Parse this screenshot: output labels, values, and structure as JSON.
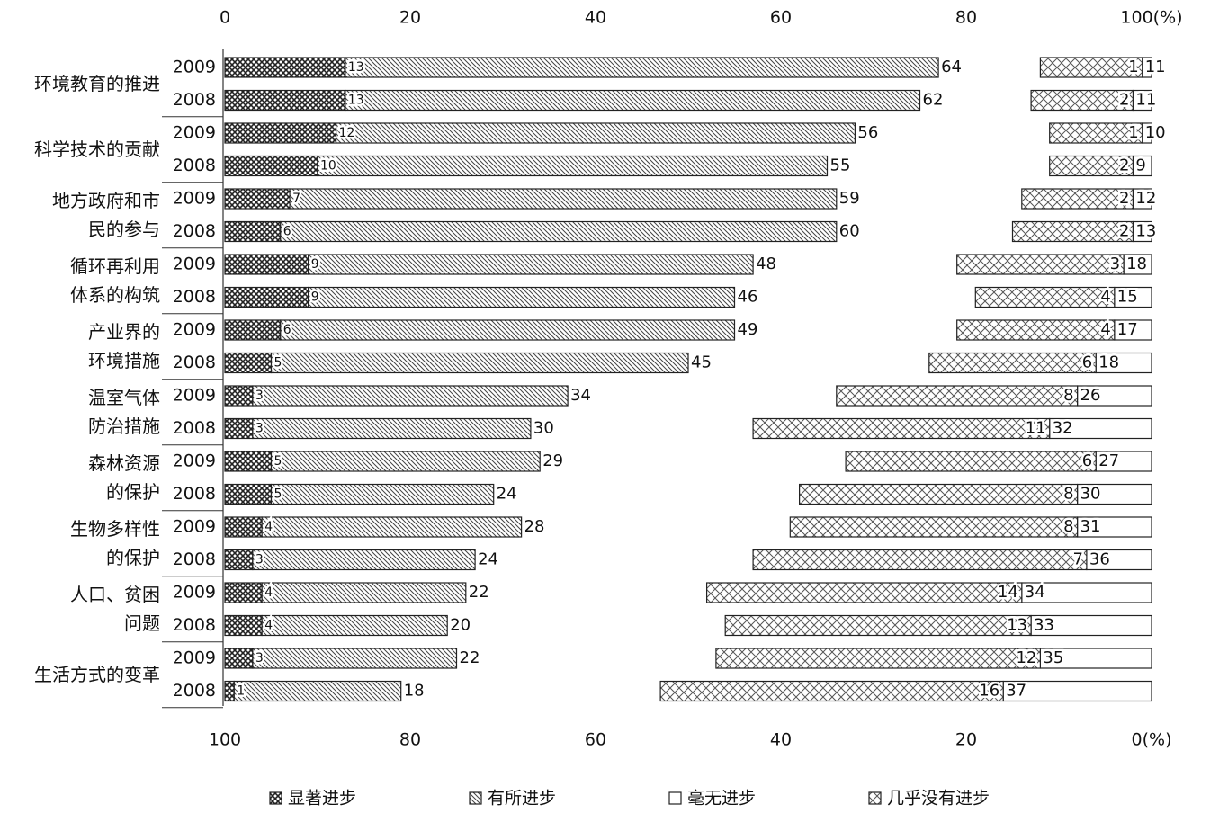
{
  "chart_data": {
    "type": "bar",
    "groups": [
      "环境教育的推进",
      "科学技术的贡献",
      "地方政府和市\n民的参与",
      "循环再利用\n体系的构筑",
      "产业界的\n环境措施",
      "温室气体\n防治措施",
      "森林资源\n的保护",
      "生物多样性\n的保护",
      "人口、贫困\n问题",
      "生活方式的变革"
    ],
    "categories": [
      "2009",
      "2008",
      "2009",
      "2008",
      "2009",
      "2008",
      "2009",
      "2008",
      "2009",
      "2008",
      "2009",
      "2008",
      "2009",
      "2008",
      "2009",
      "2008",
      "2009",
      "2008",
      "2009",
      "2008"
    ],
    "series": [
      {
        "name": "显著进步",
        "color": "#222222",
        "values": [
          13,
          13,
          12,
          10,
          7,
          6,
          9,
          9,
          6,
          5,
          3,
          3,
          5,
          5,
          4,
          3,
          4,
          4,
          3,
          1
        ]
      },
      {
        "name": "有所进步",
        "color": "#444444",
        "values": [
          64,
          62,
          56,
          55,
          59,
          60,
          48,
          46,
          49,
          45,
          34,
          30,
          29,
          24,
          28,
          24,
          22,
          20,
          22,
          18
        ]
      },
      {
        "name": "毫无进步",
        "color": "#ffffff",
        "values": [
          1,
          2,
          1,
          2,
          2,
          2,
          3,
          4,
          4,
          6,
          8,
          11,
          6,
          8,
          8,
          7,
          14,
          13,
          12,
          16
        ]
      },
      {
        "name": "几乎没有进步",
        "color": "#555555",
        "values": [
          11,
          11,
          10,
          9,
          12,
          13,
          18,
          15,
          17,
          18,
          26,
          32,
          27,
          30,
          31,
          36,
          34,
          33,
          35,
          37
        ]
      }
    ],
    "xlim": [
      0,
      100
    ],
    "xticks": [
      0,
      20,
      40,
      60,
      80,
      {
        "value": 100,
        "label": "100(%)"
      }
    ],
    "x2ticks": [
      {
        "value": 0,
        "label": "100"
      },
      {
        "value": 20,
        "label": "80"
      },
      {
        "value": 40,
        "label": "60"
      },
      {
        "value": 60,
        "label": "40"
      },
      {
        "value": 80,
        "label": "20"
      },
      {
        "value": 100,
        "label": "0(%)"
      }
    ]
  }
}
